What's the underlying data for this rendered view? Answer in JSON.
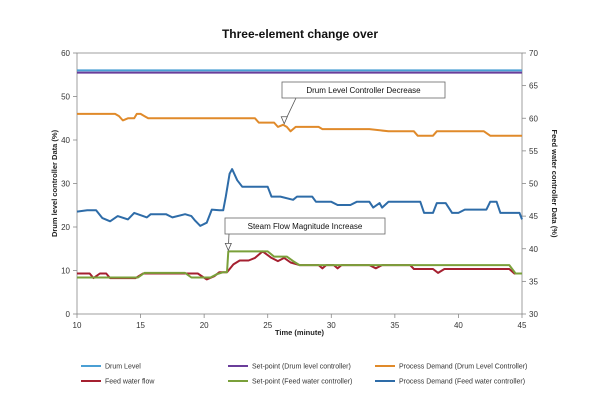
{
  "chart_data": {
    "type": "line",
    "title": "Three-element change over",
    "xlabel": "Time (minute)",
    "ylabel_left": "Drum level controller Data (%)",
    "ylabel_right": "Feed water controller Data (%)",
    "xlim": [
      10,
      45
    ],
    "xticks": [
      10,
      15,
      20,
      25,
      30,
      35,
      40,
      45
    ],
    "ylim_left": [
      0,
      60
    ],
    "yticks_left": [
      0,
      10,
      20,
      30,
      40,
      50,
      60
    ],
    "ylim_right": [
      30,
      70
    ],
    "yticks_right": [
      30,
      35,
      40,
      45,
      50,
      55,
      60,
      65,
      70
    ],
    "grid": false,
    "legend_position": "bottom",
    "series": [
      {
        "name": "Drum Level",
        "axis": "left",
        "color": "#4a9fd4",
        "points": [
          [
            10,
            56
          ],
          [
            45,
            56
          ]
        ]
      },
      {
        "name": "Set-point (Drum level controller)",
        "axis": "left",
        "color": "#6a3d9a",
        "points": [
          [
            10,
            55.5
          ],
          [
            45,
            55.5
          ]
        ]
      },
      {
        "name": "Process Demand (Drum Level Controller)",
        "axis": "left",
        "color": "#e08a2a",
        "points": [
          [
            10,
            46
          ],
          [
            13,
            46
          ],
          [
            13.3,
            45.5
          ],
          [
            13.6,
            44.5
          ],
          [
            14,
            45
          ],
          [
            14.5,
            45
          ],
          [
            14.7,
            46
          ],
          [
            15,
            46
          ],
          [
            15.3,
            45.5
          ],
          [
            15.6,
            45
          ],
          [
            24,
            45
          ],
          [
            24.3,
            44
          ],
          [
            25.5,
            44
          ],
          [
            25.8,
            43
          ],
          [
            26.2,
            43.5
          ],
          [
            26.5,
            43
          ],
          [
            26.8,
            42
          ],
          [
            27.2,
            43
          ],
          [
            29,
            43
          ],
          [
            29.3,
            42.5
          ],
          [
            33,
            42.5
          ],
          [
            34.5,
            42
          ],
          [
            36.5,
            42
          ],
          [
            36.8,
            41
          ],
          [
            38,
            41
          ],
          [
            38.3,
            42
          ],
          [
            42,
            42
          ],
          [
            42.5,
            41
          ],
          [
            45,
            41
          ]
        ]
      },
      {
        "name": "Feed water flow",
        "axis": "right",
        "color": "#a52030",
        "points": [
          [
            10,
            36.2
          ],
          [
            11,
            36.2
          ],
          [
            11.3,
            35.5
          ],
          [
            11.8,
            36.2
          ],
          [
            12.3,
            36.2
          ],
          [
            12.6,
            35.5
          ],
          [
            14.6,
            35.5
          ],
          [
            15.2,
            36.2
          ],
          [
            19.5,
            36.2
          ],
          [
            20.2,
            35.3
          ],
          [
            20.8,
            35.8
          ],
          [
            21.2,
            36.4
          ],
          [
            21.8,
            36.4
          ],
          [
            22.3,
            37.6
          ],
          [
            22.8,
            38.2
          ],
          [
            23.5,
            38.2
          ],
          [
            24,
            38.6
          ],
          [
            24.6,
            39.6
          ],
          [
            25.3,
            38.6
          ],
          [
            25.8,
            38.1
          ],
          [
            26.3,
            38.6
          ],
          [
            26.8,
            37.9
          ],
          [
            27.5,
            37.5
          ],
          [
            29,
            37.5
          ],
          [
            29.3,
            37
          ],
          [
            29.6,
            37.5
          ],
          [
            30.2,
            37.5
          ],
          [
            30.5,
            37
          ],
          [
            30.8,
            37.5
          ],
          [
            33,
            37.5
          ],
          [
            33.5,
            37
          ],
          [
            34,
            37.5
          ],
          [
            36.2,
            37.5
          ],
          [
            36.5,
            36.9
          ],
          [
            38,
            36.9
          ],
          [
            38.4,
            36.3
          ],
          [
            38.9,
            36.9
          ],
          [
            44,
            36.9
          ],
          [
            44.4,
            36.2
          ],
          [
            45,
            36.2
          ]
        ]
      },
      {
        "name": "Set-point (Feed water controller)",
        "axis": "right",
        "color": "#7aa03a",
        "points": [
          [
            10,
            35.6
          ],
          [
            14.8,
            35.6
          ],
          [
            15.3,
            36.3
          ],
          [
            18.5,
            36.3
          ],
          [
            19,
            35.6
          ],
          [
            20.5,
            35.6
          ],
          [
            21,
            36.1
          ],
          [
            21.5,
            36.4
          ],
          [
            21.8,
            36.4
          ],
          [
            21.9,
            39.6
          ],
          [
            25,
            39.6
          ],
          [
            25.5,
            38.8
          ],
          [
            26.5,
            38.8
          ],
          [
            27,
            38.1
          ],
          [
            27.5,
            37.5
          ],
          [
            44,
            37.5
          ],
          [
            44.5,
            36.2
          ],
          [
            45,
            36.2
          ]
        ]
      },
      {
        "name": "Process Demand (Feed water controller)",
        "axis": "right",
        "color": "#2e6ca8",
        "points": [
          [
            10,
            45.7
          ],
          [
            10.8,
            45.9
          ],
          [
            11.5,
            45.9
          ],
          [
            12,
            44.7
          ],
          [
            12.6,
            44.2
          ],
          [
            13.2,
            45
          ],
          [
            14,
            44.5
          ],
          [
            14.5,
            45.5
          ],
          [
            15.2,
            45
          ],
          [
            15.5,
            44.8
          ],
          [
            15.8,
            45.3
          ],
          [
            17,
            45.3
          ],
          [
            17.5,
            44.8
          ],
          [
            18.5,
            45.3
          ],
          [
            19,
            45
          ],
          [
            19.3,
            44.3
          ],
          [
            19.7,
            43.5
          ],
          [
            20.2,
            44
          ],
          [
            20.6,
            46
          ],
          [
            21.2,
            45.9
          ],
          [
            21.5,
            45.9
          ],
          [
            21.7,
            48
          ],
          [
            22,
            51.5
          ],
          [
            22.2,
            52.2
          ],
          [
            22.6,
            50.5
          ],
          [
            23,
            49.5
          ],
          [
            25,
            49.5
          ],
          [
            25.3,
            48
          ],
          [
            26,
            48
          ],
          [
            27,
            47.5
          ],
          [
            27.3,
            48
          ],
          [
            28.5,
            48
          ],
          [
            28.8,
            47.2
          ],
          [
            30,
            47.2
          ],
          [
            30.5,
            46.7
          ],
          [
            31.5,
            46.7
          ],
          [
            32,
            47.2
          ],
          [
            33,
            47.2
          ],
          [
            33.3,
            46.3
          ],
          [
            33.8,
            47
          ],
          [
            34,
            46.3
          ],
          [
            34.5,
            47.2
          ],
          [
            37,
            47.2
          ],
          [
            37.3,
            45.5
          ],
          [
            38,
            45.5
          ],
          [
            38.3,
            47
          ],
          [
            39,
            47
          ],
          [
            39.5,
            45.5
          ],
          [
            40,
            45.5
          ],
          [
            40.5,
            46
          ],
          [
            42.2,
            46
          ],
          [
            42.5,
            47.2
          ],
          [
            43,
            47.2
          ],
          [
            43.3,
            45.5
          ],
          [
            44.8,
            45.5
          ],
          [
            45,
            44.5
          ]
        ]
      }
    ],
    "annotations": [
      {
        "text": "Drum Level Controller Decrease",
        "x": 26.3,
        "y": 43.5,
        "axis": "left"
      },
      {
        "text": "Steam  Flow Magnitude Increase",
        "x": 21.9,
        "y": 39.6,
        "axis": "right"
      }
    ]
  }
}
